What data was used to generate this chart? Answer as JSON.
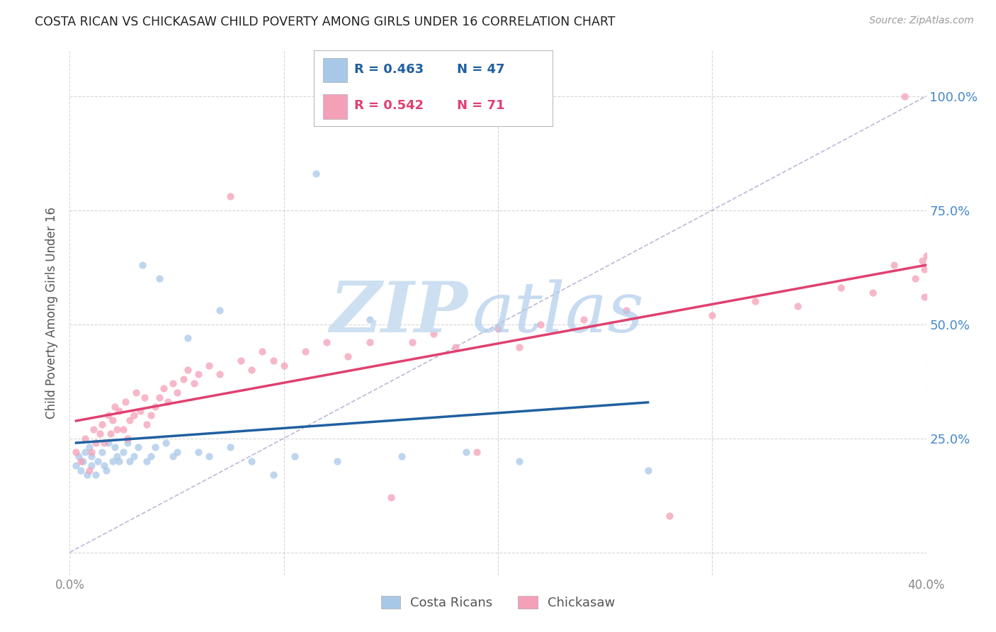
{
  "title": "COSTA RICAN VS CHICKASAW CHILD POVERTY AMONG GIRLS UNDER 16 CORRELATION CHART",
  "source": "Source: ZipAtlas.com",
  "ylabel": "Child Poverty Among Girls Under 16",
  "xlim": [
    0.0,
    0.4
  ],
  "ylim": [
    -0.05,
    1.1
  ],
  "costa_rican_R": 0.463,
  "costa_rican_N": 47,
  "chickasaw_R": 0.542,
  "chickasaw_N": 71,
  "blue_scatter_color": "#a8c8e8",
  "pink_scatter_color": "#f4a0b8",
  "blue_line_color": "#2060a0",
  "pink_line_color": "#e04070",
  "scatter_alpha": 0.75,
  "scatter_size": 55,
  "background_color": "#ffffff",
  "grid_color": "#cccccc",
  "axis_label_color": "#555555",
  "right_tick_color": "#4488cc",
  "title_color": "#222222",
  "watermark_zip_color": "#c8ddf0",
  "watermark_atlas_color": "#b0ccec",
  "costa_ricans_x": [
    0.003,
    0.004,
    0.005,
    0.006,
    0.007,
    0.008,
    0.009,
    0.01,
    0.01,
    0.012,
    0.013,
    0.015,
    0.016,
    0.017,
    0.018,
    0.02,
    0.021,
    0.022,
    0.023,
    0.025,
    0.027,
    0.028,
    0.03,
    0.032,
    0.034,
    0.036,
    0.038,
    0.04,
    0.042,
    0.045,
    0.048,
    0.05,
    0.055,
    0.06,
    0.065,
    0.07,
    0.075,
    0.085,
    0.095,
    0.105,
    0.115,
    0.125,
    0.14,
    0.155,
    0.185,
    0.21,
    0.27
  ],
  "costa_ricans_y": [
    0.19,
    0.21,
    0.18,
    0.2,
    0.22,
    0.17,
    0.23,
    0.19,
    0.21,
    0.17,
    0.2,
    0.22,
    0.19,
    0.18,
    0.24,
    0.2,
    0.23,
    0.21,
    0.2,
    0.22,
    0.24,
    0.2,
    0.21,
    0.23,
    0.63,
    0.2,
    0.21,
    0.23,
    0.6,
    0.24,
    0.21,
    0.22,
    0.47,
    0.22,
    0.21,
    0.53,
    0.23,
    0.2,
    0.17,
    0.21,
    0.83,
    0.2,
    0.51,
    0.21,
    0.22,
    0.2,
    0.18
  ],
  "chickasaw_x": [
    0.003,
    0.005,
    0.007,
    0.009,
    0.01,
    0.011,
    0.012,
    0.014,
    0.015,
    0.016,
    0.018,
    0.019,
    0.02,
    0.021,
    0.022,
    0.023,
    0.025,
    0.026,
    0.027,
    0.028,
    0.03,
    0.031,
    0.033,
    0.035,
    0.036,
    0.038,
    0.04,
    0.042,
    0.044,
    0.046,
    0.048,
    0.05,
    0.053,
    0.055,
    0.058,
    0.06,
    0.065,
    0.07,
    0.075,
    0.08,
    0.085,
    0.09,
    0.095,
    0.1,
    0.11,
    0.12,
    0.13,
    0.14,
    0.15,
    0.16,
    0.17,
    0.18,
    0.19,
    0.2,
    0.21,
    0.22,
    0.24,
    0.26,
    0.28,
    0.3,
    0.32,
    0.34,
    0.36,
    0.375,
    0.385,
    0.39,
    0.395,
    0.398,
    0.399,
    0.399,
    0.4
  ],
  "chickasaw_y": [
    0.22,
    0.2,
    0.25,
    0.18,
    0.22,
    0.27,
    0.24,
    0.26,
    0.28,
    0.24,
    0.3,
    0.26,
    0.29,
    0.32,
    0.27,
    0.31,
    0.27,
    0.33,
    0.25,
    0.29,
    0.3,
    0.35,
    0.31,
    0.34,
    0.28,
    0.3,
    0.32,
    0.34,
    0.36,
    0.33,
    0.37,
    0.35,
    0.38,
    0.4,
    0.37,
    0.39,
    0.41,
    0.39,
    0.78,
    0.42,
    0.4,
    0.44,
    0.42,
    0.41,
    0.44,
    0.46,
    0.43,
    0.46,
    0.12,
    0.46,
    0.48,
    0.45,
    0.22,
    0.49,
    0.45,
    0.5,
    0.51,
    0.53,
    0.08,
    0.52,
    0.55,
    0.54,
    0.58,
    0.57,
    0.63,
    1.0,
    0.6,
    0.64,
    0.62,
    0.56,
    0.65
  ]
}
